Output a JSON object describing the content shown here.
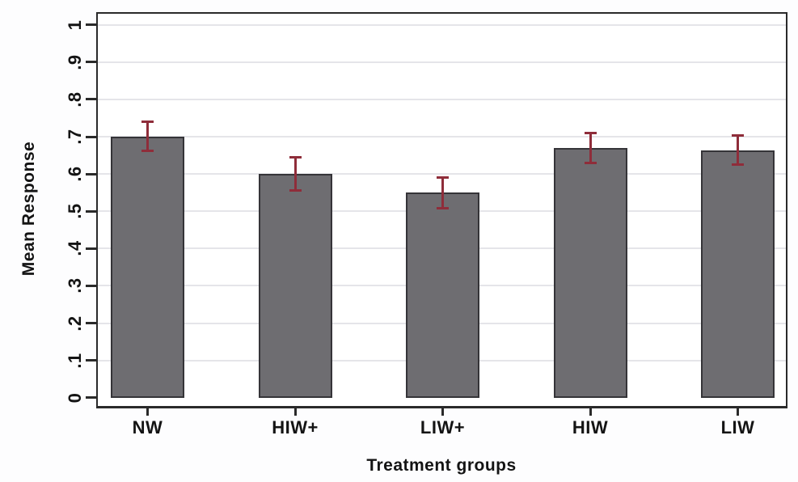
{
  "figure": {
    "background": "#fdfdfe",
    "plot_background": "#ffffff",
    "axis_color": "#2a2a2a",
    "grid_color": "#e5e5e9",
    "text_color": "#141414"
  },
  "chart_data": {
    "type": "bar",
    "title": "",
    "xlabel": "Treatment groups",
    "ylabel": "Mean Response",
    "categories": [
      "NW",
      "HIW+",
      "LIW+",
      "HIW",
      "LIW"
    ],
    "values": [
      0.7,
      0.6,
      0.55,
      0.67,
      0.663
    ],
    "error_low": [
      0.66,
      0.555,
      0.506,
      0.629,
      0.624
    ],
    "error_high": [
      0.742,
      0.645,
      0.592,
      0.71,
      0.704
    ],
    "ylim": [
      0,
      1
    ],
    "ytick_values": [
      0,
      0.1,
      0.2,
      0.3,
      0.4,
      0.5,
      0.6,
      0.7,
      0.8,
      0.9,
      1
    ],
    "ytick_labels": [
      "0",
      ".1",
      ".2",
      ".3",
      ".4",
      ".5",
      ".6",
      ".7",
      ".8",
      ".9",
      "1"
    ],
    "grid": true,
    "legend_position": "none",
    "bar_color": "#6e6d71",
    "bar_border_color": "#353438",
    "error_bar_color": "#8f2d3a"
  }
}
